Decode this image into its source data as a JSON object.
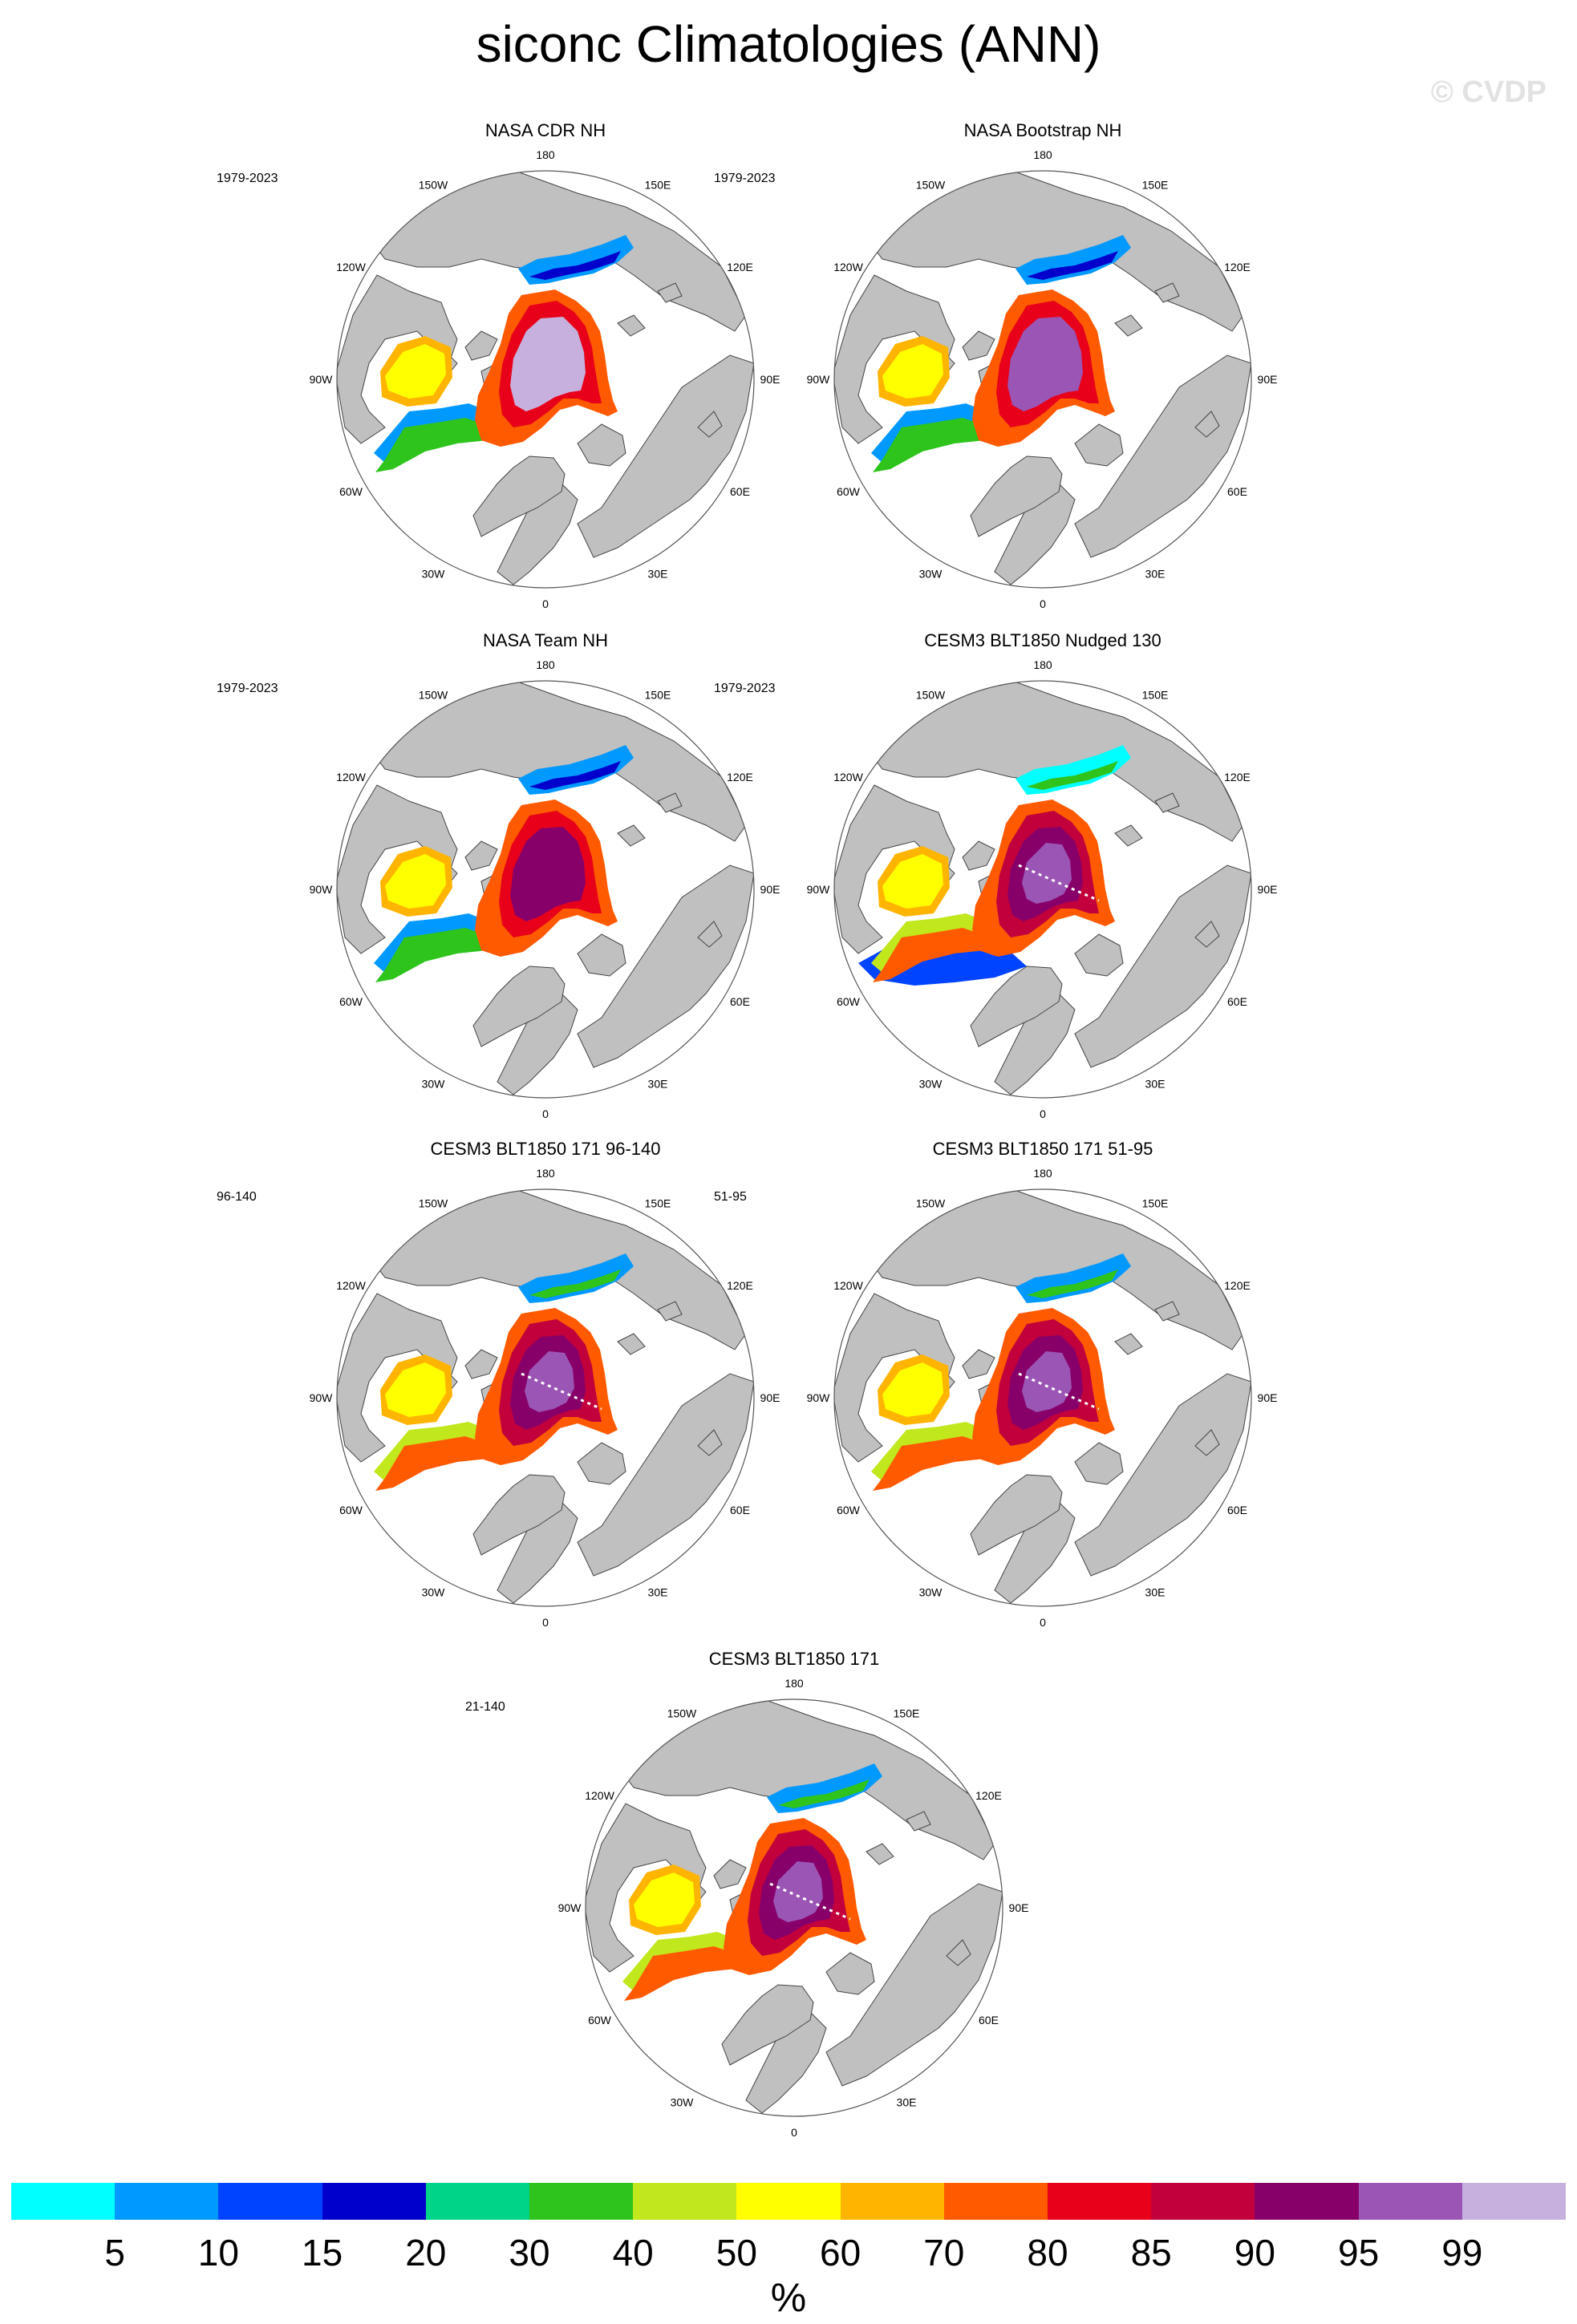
{
  "title": "siconc Climatologies (ANN)",
  "watermark": "© CVDP",
  "longitude_labels": [
    "180",
    "150E",
    "120E",
    "90E",
    "60E",
    "30E",
    "0",
    "30W",
    "60W",
    "90W",
    "120W",
    "150W"
  ],
  "panels": [
    {
      "title": "NASA CDR NH",
      "period": "1979-2023",
      "pattern": "obs-cdr"
    },
    {
      "title": "NASA Bootstrap NH",
      "period": "1979-2023",
      "pattern": "obs-boot"
    },
    {
      "title": "NASA Team NH",
      "period": "1979-2023",
      "pattern": "obs-team"
    },
    {
      "title": "CESM3 BLT1850 Nudged 130",
      "period": "1979-2023",
      "pattern": "model-nudged"
    },
    {
      "title": "CESM3 BLT1850 171 96-140",
      "period": "96-140",
      "pattern": "model"
    },
    {
      "title": "CESM3 BLT1850 171 51-95",
      "period": "51-95",
      "pattern": "model"
    },
    {
      "title": "CESM3 BLT1850 171",
      "period": "21-140",
      "pattern": "model"
    }
  ],
  "colorbar": {
    "levels": [
      "5",
      "10",
      "15",
      "20",
      "30",
      "40",
      "50",
      "60",
      "70",
      "80",
      "85",
      "90",
      "95",
      "99"
    ],
    "colors": [
      "#00ffff",
      "#0099ff",
      "#0044ff",
      "#0000cc",
      "#00d488",
      "#2ec41c",
      "#c0e81c",
      "#ffff00",
      "#ffb400",
      "#ff5a00",
      "#e8001a",
      "#c2003c",
      "#870069",
      "#9b55b5",
      "#c8b0de"
    ],
    "units": "%"
  },
  "map_colors": {
    "land": "#c0c0c0",
    "ocean": "#ffffff",
    "coast": "#444444"
  }
}
